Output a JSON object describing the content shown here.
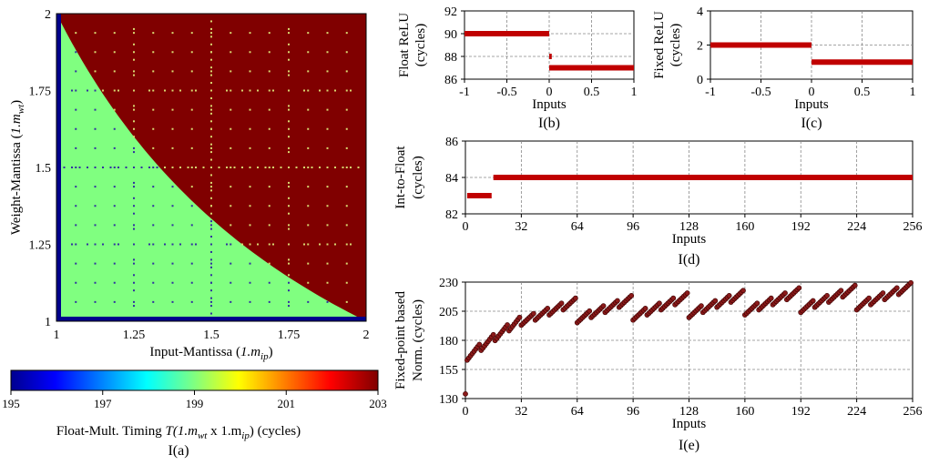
{
  "chart_data": [
    {
      "id": "a",
      "type": "heatmap",
      "caption": "I(a)",
      "xlabel": "Input-Mantissa",
      "xlabel_var": "1.m",
      "xlabel_sub": "ip",
      "ylabel": "Weight-Mantissa",
      "ylabel_var": "1.m",
      "ylabel_sub": "wt",
      "xlim": [
        1,
        2
      ],
      "ylim": [
        1,
        2
      ],
      "xticks": [
        "1",
        "1.25",
        "1.5",
        "1.75",
        "2"
      ],
      "yticks": [
        "1",
        "1.25",
        "1.5",
        "1.75",
        "2"
      ],
      "regions": [
        {
          "name": "high",
          "value": 203,
          "color": "#800000",
          "rule": "x*y >= 2"
        },
        {
          "name": "low",
          "value": 199,
          "color": "#80ff80",
          "rule": "x*y < 2"
        },
        {
          "name": "edge",
          "value": 195,
          "color": "#00008b",
          "rule": "x = 1 or y = 1"
        }
      ],
      "colorbar": {
        "min": 195,
        "max": 203,
        "ticks": [
          "195",
          "197",
          "199",
          "201",
          "203"
        ],
        "label_prefix": "Float-Mult. Timing ",
        "label_formula": "T(1.m",
        "label_sub1": "wt",
        "label_mid": " x 1.m",
        "label_sub2": "ip",
        "label_suffix": ") (cycles)"
      }
    },
    {
      "id": "b",
      "type": "line",
      "caption": "I(b)",
      "xlabel": "Inputs",
      "ylabel": "Float ReLU",
      "ylabel2": "(cycles)",
      "xlim": [
        -1,
        1
      ],
      "ylim": [
        86,
        92
      ],
      "xticks": [
        -1,
        -0.5,
        0,
        0.5,
        1
      ],
      "xtick_labels": [
        "-1",
        "-0.5",
        "0",
        "0.5",
        "1"
      ],
      "yticks": [
        86,
        88,
        90,
        92
      ],
      "ytick_labels": [
        "86",
        "88",
        "90",
        "92"
      ],
      "segments": [
        {
          "x": [
            -1,
            0
          ],
          "y": 90
        },
        {
          "x": [
            0,
            0.03
          ],
          "y": 88
        },
        {
          "x": [
            0,
            1
          ],
          "y": 87
        }
      ],
      "color": "#c00000"
    },
    {
      "id": "c",
      "type": "line",
      "caption": "I(c)",
      "xlabel": "Inputs",
      "ylabel": "Fixed ReLU",
      "ylabel2": "(cycles)",
      "xlim": [
        -1,
        1
      ],
      "ylim": [
        0,
        4
      ],
      "xticks": [
        -1,
        -0.5,
        0,
        0.5,
        1
      ],
      "xtick_labels": [
        "-1",
        "-0.5",
        "0",
        "0.5",
        "1"
      ],
      "yticks": [
        0,
        2,
        4
      ],
      "ytick_labels": [
        "0",
        "2",
        "4"
      ],
      "segments": [
        {
          "x": [
            -1,
            0
          ],
          "y": 2
        },
        {
          "x": [
            0,
            1
          ],
          "y": 1
        }
      ],
      "color": "#c00000"
    },
    {
      "id": "d",
      "type": "line",
      "caption": "I(d)",
      "xlabel": "Inputs",
      "ylabel": "Int-to-Float",
      "ylabel2": "(cycles)",
      "xlim": [
        0,
        256
      ],
      "ylim": [
        82,
        86
      ],
      "xticks": [
        0,
        32,
        64,
        96,
        128,
        160,
        192,
        224,
        256
      ],
      "xtick_labels": [
        "0",
        "32",
        "64",
        "96",
        "128",
        "160",
        "192",
        "224",
        "256"
      ],
      "yticks": [
        82,
        84,
        86
      ],
      "ytick_labels": [
        "82",
        "84",
        "86"
      ],
      "segments": [
        {
          "x": [
            1,
            15
          ],
          "y": 83
        },
        {
          "x": [
            16,
            256
          ],
          "y": 84
        }
      ],
      "color": "#c00000"
    },
    {
      "id": "e",
      "type": "scatter",
      "caption": "I(e)",
      "xlabel": "Inputs",
      "ylabel": "Fixed-point based",
      "ylabel2": "Norm. (cycles)",
      "xlim": [
        0,
        256
      ],
      "ylim": [
        130,
        230
      ],
      "xticks": [
        0,
        32,
        64,
        96,
        128,
        160,
        192,
        224,
        256
      ],
      "xtick_labels": [
        "0",
        "32",
        "64",
        "96",
        "128",
        "160",
        "192",
        "224",
        "256"
      ],
      "yticks": [
        130,
        155,
        180,
        205,
        230
      ],
      "ytick_labels": [
        "130",
        "155",
        "180",
        "205",
        "230"
      ],
      "first_point": {
        "x": 0,
        "y": 134
      },
      "groups": [
        {
          "x_start": 1,
          "x_end": 31,
          "base_start": 163,
          "base_step": 1.05,
          "saw_period": 8,
          "saw_amp": 7
        },
        {
          "x_start": 32,
          "x_end": 255,
          "base_start": 193,
          "base_step": 0.08,
          "saw_period": 8,
          "saw_amp": 7,
          "reset_every": 32,
          "reset_drop": 14
        }
      ],
      "color": "#8b1a1a"
    }
  ]
}
